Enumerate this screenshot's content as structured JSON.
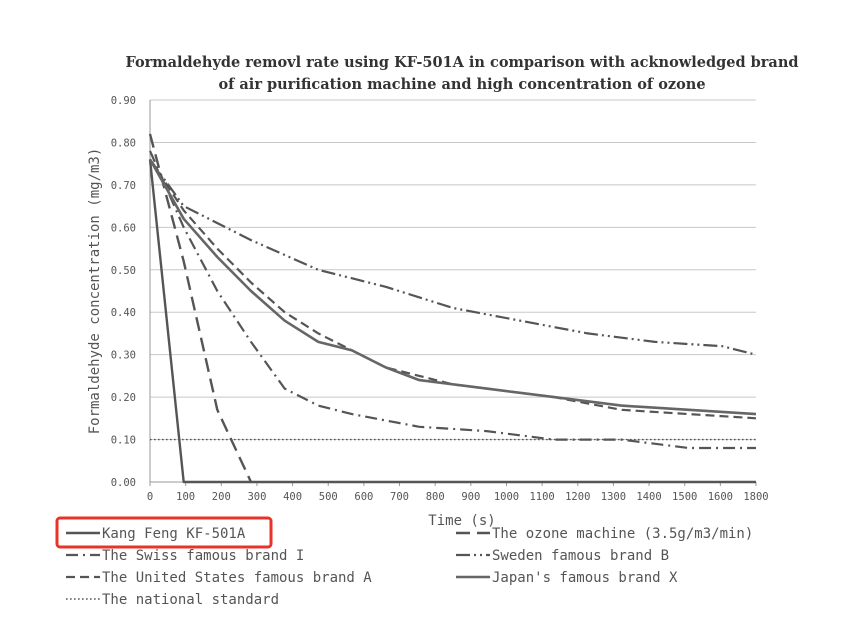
{
  "chart_data": {
    "type": "line",
    "title_lines": [
      "Formaldehyde removl rate using KF-501A in comparison with acknowledged brand",
      "of air purification machine and high concentration of ozone"
    ],
    "xlabel": "Time (s)",
    "ylabel": "Formaldehyde concentration (mg/m3)",
    "xlim": [
      0,
      1800
    ],
    "ylim": [
      0,
      0.9
    ],
    "x_ticks": [
      "0",
      "100",
      "200",
      "300",
      "400",
      "500",
      "600",
      "700",
      "800",
      "900",
      "1000",
      "1100",
      "1200",
      "1300",
      "1400",
      "1500",
      "1600",
      "1800"
    ],
    "y_ticks": [
      "0.00",
      "0.10",
      "0.20",
      "0.30",
      "0.40",
      "0.50",
      "0.60",
      "0.70",
      "0.80",
      "0.90"
    ],
    "grid": "horizontal",
    "legend_position": "bottom",
    "highlight": "Kang Feng KF-501A",
    "series": [
      {
        "name": "Kang Feng KF-501A",
        "style": "solid",
        "color": "#555555",
        "points": [
          [
            0,
            0.76
          ],
          [
            100,
            0.0
          ],
          [
            1800,
            0.0
          ]
        ]
      },
      {
        "name": "The ozone machine (3.5g/m3/min)",
        "style": "longdash",
        "color": "#555555",
        "points": [
          [
            0,
            0.82
          ],
          [
            100,
            0.52
          ],
          [
            200,
            0.17
          ],
          [
            300,
            0.0
          ]
        ]
      },
      {
        "name": "The Swiss famous brand I",
        "style": "dashdot",
        "color": "#555555",
        "points": [
          [
            0,
            0.78
          ],
          [
            100,
            0.6
          ],
          [
            200,
            0.45
          ],
          [
            300,
            0.33
          ],
          [
            400,
            0.22
          ],
          [
            500,
            0.18
          ],
          [
            600,
            0.16
          ],
          [
            800,
            0.13
          ],
          [
            1000,
            0.12
          ],
          [
            1200,
            0.1
          ],
          [
            1400,
            0.1
          ],
          [
            1600,
            0.08
          ],
          [
            1800,
            0.08
          ]
        ]
      },
      {
        "name": "Sweden famous brand B",
        "style": "dashdotdot",
        "color": "#555555",
        "points": [
          [
            0,
            0.76
          ],
          [
            100,
            0.65
          ],
          [
            300,
            0.57
          ],
          [
            500,
            0.5
          ],
          [
            700,
            0.46
          ],
          [
            900,
            0.41
          ],
          [
            1100,
            0.38
          ],
          [
            1300,
            0.35
          ],
          [
            1500,
            0.33
          ],
          [
            1700,
            0.32
          ],
          [
            1800,
            0.3
          ]
        ]
      },
      {
        "name": "The United States famous brand A",
        "style": "dash",
        "color": "#555555",
        "points": [
          [
            0,
            0.76
          ],
          [
            100,
            0.64
          ],
          [
            200,
            0.55
          ],
          [
            300,
            0.47
          ],
          [
            400,
            0.4
          ],
          [
            500,
            0.35
          ],
          [
            600,
            0.31
          ],
          [
            700,
            0.27
          ],
          [
            800,
            0.25
          ],
          [
            900,
            0.23
          ],
          [
            1000,
            0.22
          ],
          [
            1200,
            0.2
          ],
          [
            1400,
            0.17
          ],
          [
            1600,
            0.16
          ],
          [
            1800,
            0.15
          ]
        ]
      },
      {
        "name": "Japan's famous brand X",
        "style": "solid-thick",
        "color": "#666666",
        "points": [
          [
            0,
            0.76
          ],
          [
            100,
            0.62
          ],
          [
            200,
            0.53
          ],
          [
            300,
            0.45
          ],
          [
            400,
            0.38
          ],
          [
            500,
            0.33
          ],
          [
            600,
            0.31
          ],
          [
            700,
            0.27
          ],
          [
            800,
            0.24
          ],
          [
            1000,
            0.22
          ],
          [
            1200,
            0.2
          ],
          [
            1400,
            0.18
          ],
          [
            1600,
            0.17
          ],
          [
            1800,
            0.16
          ]
        ]
      },
      {
        "name": "The national standard",
        "style": "dotted",
        "color": "#555555",
        "points": [
          [
            0,
            0.1
          ],
          [
            1800,
            0.1
          ]
        ]
      }
    ],
    "legend_layout": [
      {
        "name": "Kang Feng KF-501A",
        "col": 0,
        "row": 0
      },
      {
        "name": "The ozone machine (3.5g/m3/min)",
        "col": 1,
        "row": 0
      },
      {
        "name": "The Swiss famous brand I",
        "col": 0,
        "row": 1
      },
      {
        "name": "Sweden famous brand B",
        "col": 1,
        "row": 1
      },
      {
        "name": "The United States famous brand A",
        "col": 0,
        "row": 2
      },
      {
        "name": "Japan's famous brand X",
        "col": 1,
        "row": 2
      },
      {
        "name": "The national standard",
        "col": 0,
        "row": 3
      }
    ],
    "highlight_color": "#e8332a"
  }
}
